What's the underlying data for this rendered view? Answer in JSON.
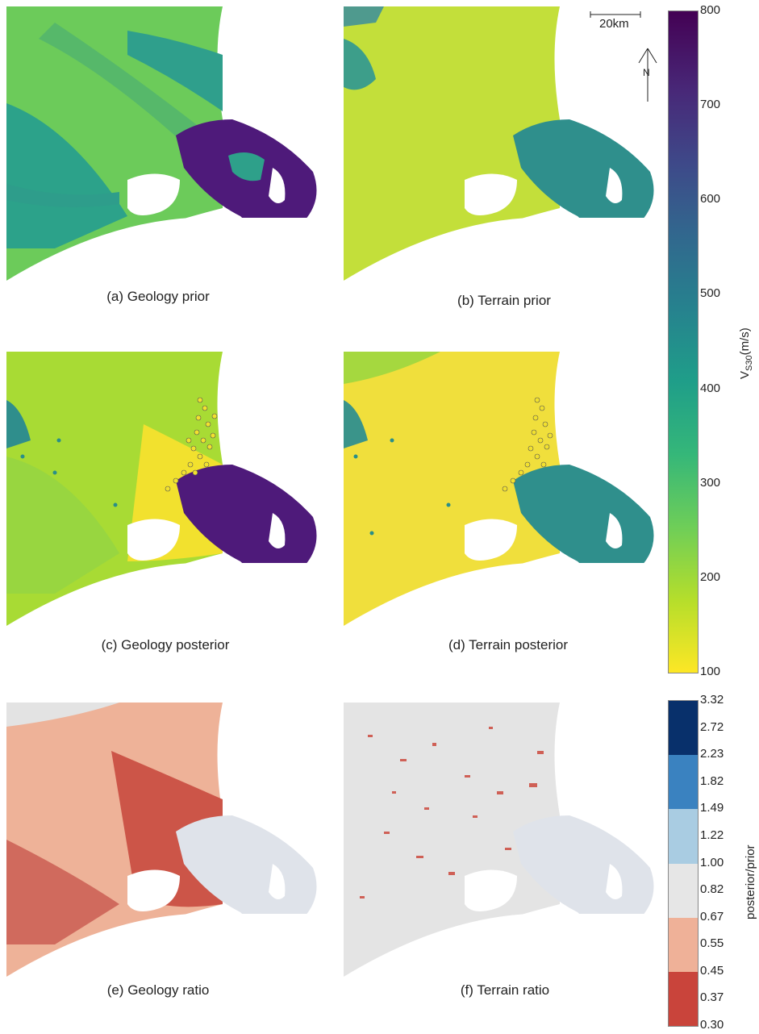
{
  "panels": [
    {
      "id": "a",
      "caption": "(a) Geology prior"
    },
    {
      "id": "b",
      "caption": "(b) Terrain prior"
    },
    {
      "id": "c",
      "caption": "(c) Geology posterior"
    },
    {
      "id": "d",
      "caption": "(d) Terrain posterior"
    },
    {
      "id": "e",
      "caption": "(e) Geology ratio"
    },
    {
      "id": "f",
      "caption": "(f) Terrain ratio"
    }
  ],
  "scale_bar": {
    "label": "20km"
  },
  "north_arrow": {
    "label": "N"
  },
  "vs30_colorbar": {
    "label_main": "V",
    "label_sub": "S30",
    "label_unit": "(m/s)",
    "ticks": [
      "800",
      "700",
      "600",
      "500",
      "400",
      "300",
      "200",
      "100"
    ],
    "min": 100,
    "max": 800,
    "colors": [
      "#fde725",
      "#b5de2b",
      "#6ece58",
      "#35b779",
      "#1f9e89",
      "#26828e",
      "#31688e",
      "#3e4989",
      "#482878",
      "#440154"
    ]
  },
  "ratio_colorbar": {
    "label": "posterior/prior",
    "ticks": [
      "3.32",
      "2.72",
      "2.23",
      "1.82",
      "1.49",
      "1.22",
      "1.00",
      "0.82",
      "0.67",
      "0.55",
      "0.45",
      "0.37",
      "0.30"
    ],
    "bands": [
      "#08306b",
      "#08306b",
      "#3a82c0",
      "#3a82c0",
      "#a9cce2",
      "#a9cce2",
      "#e6e6e6",
      "#e6e6e6",
      "#efb198",
      "#efb198",
      "#c9443b",
      "#c9443b",
      "#67000d"
    ]
  }
}
